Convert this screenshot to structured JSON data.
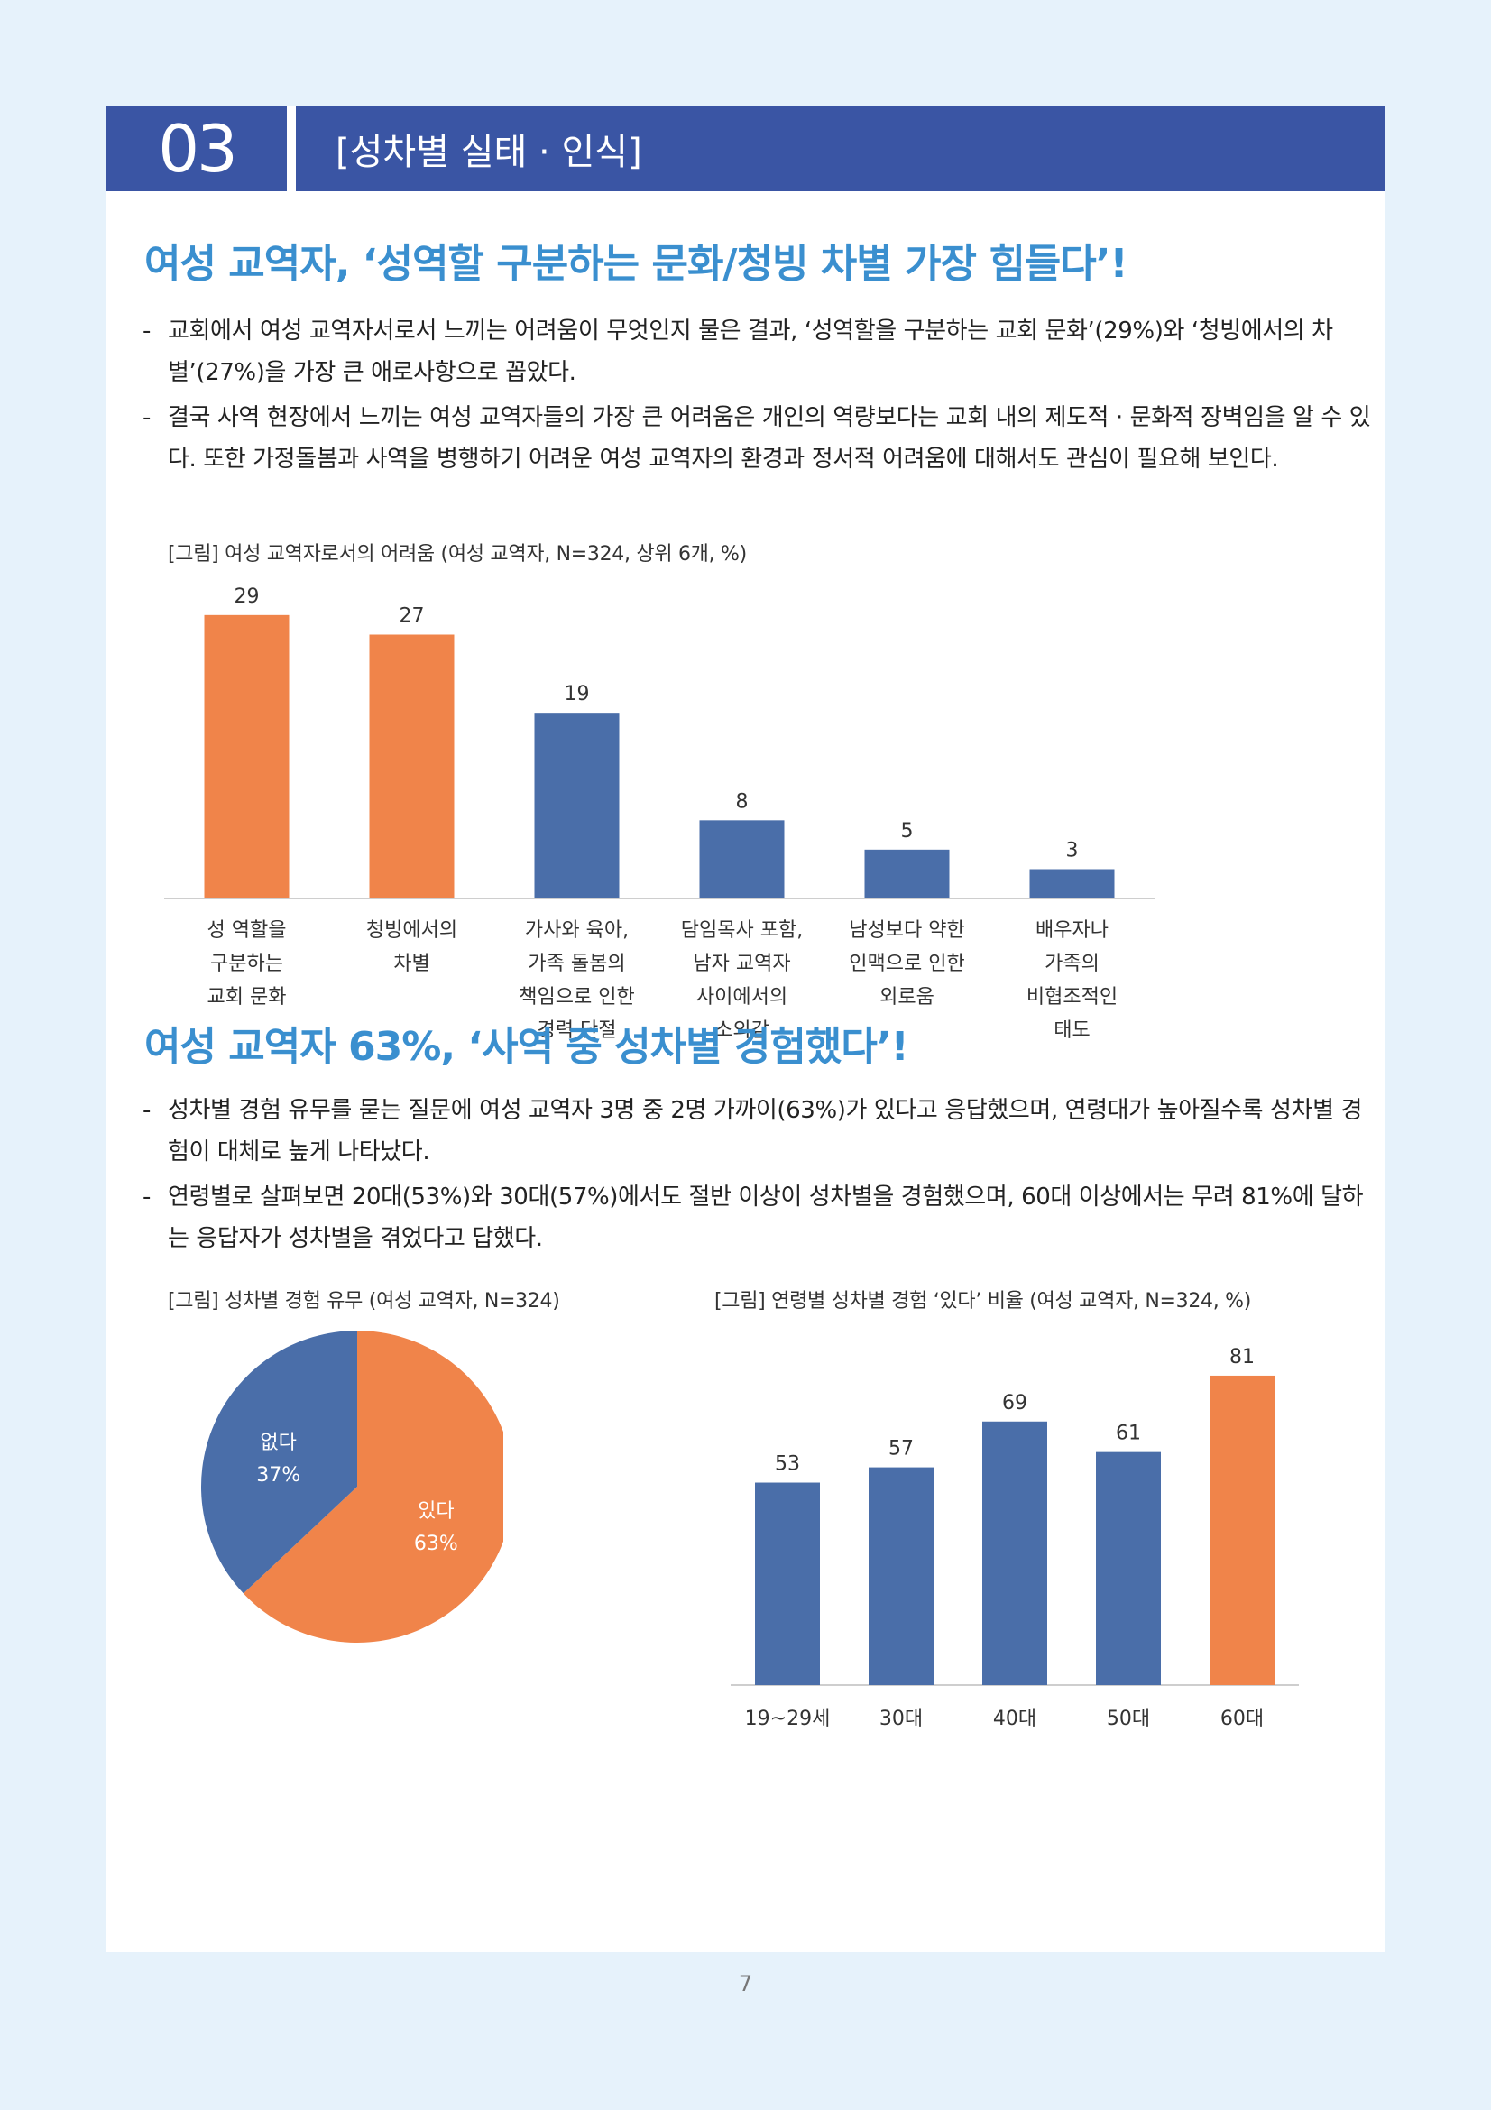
{
  "section": {
    "number": "03",
    "title": "[성차별 실태 · 인식]"
  },
  "part1": {
    "headline": "여성 교역자, ‘성역할 구분하는 문화/청빙 차별 가장 힘들다’!",
    "bullets": [
      "교회에서 여성 교역자서로서 느끼는 어려움이 무엇인지 물은 결과, ‘성역할을 구분하는 교회 문화’(29%)와 ‘청빙에서의 차별’(27%)을 가장 큰 애로사항으로 꼽았다.",
      "결국 사역 현장에서 느끼는 여성 교역자들의 가장 큰 어려움은 개인의 역량보다는 교회 내의 제도적 · 문화적 장벽임을 알 수 있다. 또한 가정돌봄과 사역을 병행하기 어려운 여성 교역자의 환경과 정서적 어려움에 대해서도 관심이 필요해 보인다."
    ],
    "figure_caption": "[그림] 여성 교역자로서의 어려움 (여성 교역자, N=324, 상위 6개, %)"
  },
  "part2": {
    "headline": "여성 교역자 63%, ‘사역 중 성차별 경험했다’!",
    "bullets": [
      "성차별 경험 유무를 묻는 질문에 여성 교역자 3명 중 2명 가까이(63%)가 있다고 응답했으며, 연령대가 높아질수록 성차별 경험이 대체로 높게 나타났다.",
      "연령별로 살펴보면 20대(53%)와 30대(57%)에서도 절반 이상이 성차별을 경험했으며, 60대 이상에서는 무려 81%에 달하는 응답자가 성차별을 겪었다고 답했다."
    ],
    "pie_caption": "[그림] 성차별 경험 유무 (여성 교역자, N=324)",
    "age_caption": "[그림] 연령별 성차별 경험 ‘있다’ 비율 (여성 교역자, N=324, %)"
  },
  "page_number": "7",
  "colors": {
    "orange": "#f0844a",
    "blue": "#4a6ea9",
    "header": "#3a55a4",
    "headline": "#3a8fcf"
  },
  "chart_data": [
    {
      "type": "bar",
      "title": "[그림] 여성 교역자로서의 어려움 (여성 교역자, N=324, 상위 6개, %)",
      "categories": [
        [
          "성 역할을",
          "구분하는",
          "교회 문화"
        ],
        [
          "청빙에서의",
          "차별"
        ],
        [
          "가사와 육아,",
          "가족 돌봄의",
          "책임으로 인한",
          "경력 단절"
        ],
        [
          "담임목사 포함,",
          "남자 교역자",
          "사이에서의",
          "소외감"
        ],
        [
          "남성보다 약한",
          "인맥으로 인한",
          "외로움"
        ],
        [
          "배우자나",
          "가족의",
          "비협조적인",
          "태도"
        ]
      ],
      "values": [
        29,
        27,
        19,
        8,
        5,
        3
      ],
      "bar_colors": [
        "#f0844a",
        "#f0844a",
        "#4a6ea9",
        "#4a6ea9",
        "#4a6ea9",
        "#4a6ea9"
      ],
      "ylim": [
        0,
        30
      ]
    },
    {
      "type": "pie",
      "title": "[그림] 성차별 경험 유무 (여성 교역자, N=324)",
      "slices": [
        {
          "label": "있다",
          "value": 63,
          "display": "63%",
          "color": "#f0844a"
        },
        {
          "label": "없다",
          "value": 37,
          "display": "37%",
          "color": "#4a6ea9"
        }
      ]
    },
    {
      "type": "bar",
      "title": "[그림] 연령별 성차별 경험 ‘있다’ 비율 (여성 교역자, N=324, %)",
      "categories": [
        "19~29세",
        "30대",
        "40대",
        "50대",
        "60대"
      ],
      "values": [
        53,
        57,
        69,
        61,
        81
      ],
      "bar_colors": [
        "#4a6ea9",
        "#4a6ea9",
        "#4a6ea9",
        "#4a6ea9",
        "#f0844a"
      ],
      "ylim": [
        0,
        85
      ]
    }
  ]
}
